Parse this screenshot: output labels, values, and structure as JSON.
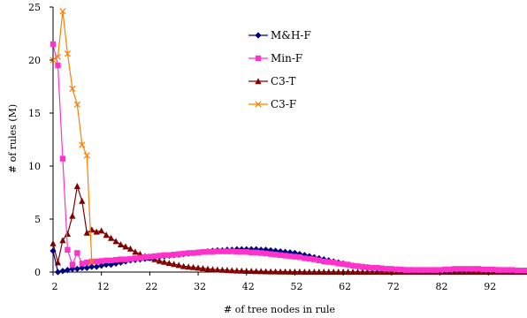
{
  "chart_data": {
    "type": "line",
    "title": "",
    "xlabel": "# of tree nodes in rule",
    "ylabel": "# of rules (M)",
    "xlim": [
      2,
      100
    ],
    "ylim": [
      0,
      25
    ],
    "x_ticks": [
      2,
      12,
      22,
      32,
      42,
      52,
      62,
      72,
      82,
      92
    ],
    "y_ticks": [
      0,
      5,
      10,
      15,
      20,
      25
    ],
    "legend_position": "top-center",
    "grid": false,
    "series": [
      {
        "name": "M&H-F",
        "color": "#00007f",
        "marker": "diamond",
        "x": [
          2,
          3,
          4,
          5,
          6,
          7,
          8,
          9,
          10,
          11,
          12,
          13,
          14,
          15,
          16,
          17,
          18,
          19,
          20,
          21,
          22,
          23,
          24,
          25,
          26,
          27,
          28,
          29,
          30,
          31,
          32,
          33,
          34,
          35,
          36,
          37,
          38,
          39,
          40,
          41,
          42,
          43,
          44,
          45,
          46,
          47,
          48,
          49,
          50,
          51,
          52,
          53,
          54,
          55,
          56,
          57,
          58,
          59,
          60,
          61,
          62,
          63,
          64,
          65,
          66,
          67,
          68,
          69,
          70,
          71,
          72,
          73,
          74,
          75,
          76,
          77,
          78,
          79,
          80,
          81,
          82,
          83,
          84,
          85,
          86,
          87,
          88,
          89,
          90,
          91,
          92,
          93,
          94,
          95,
          96,
          97,
          98,
          99,
          100
        ],
        "values": [
          2.0,
          0.0,
          0.1,
          0.2,
          0.3,
          0.3,
          0.4,
          0.4,
          0.5,
          0.5,
          0.6,
          0.7,
          0.7,
          0.8,
          0.9,
          1.0,
          1.1,
          1.15,
          1.2,
          1.25,
          1.3,
          1.4,
          1.45,
          1.5,
          1.55,
          1.6,
          1.65,
          1.7,
          1.75,
          1.8,
          1.85,
          1.9,
          1.95,
          2.0,
          2.05,
          2.05,
          2.1,
          2.1,
          2.15,
          2.15,
          2.15,
          2.15,
          2.15,
          2.1,
          2.1,
          2.05,
          2.0,
          1.95,
          1.9,
          1.85,
          1.8,
          1.7,
          1.6,
          1.5,
          1.4,
          1.3,
          1.2,
          1.1,
          1.0,
          0.9,
          0.8,
          0.7,
          0.6,
          0.55,
          0.5,
          0.45,
          0.4,
          0.35,
          0.3,
          0.3,
          0.25,
          0.25,
          0.2,
          0.2,
          0.2,
          0.15,
          0.15,
          0.15,
          0.15,
          0.15,
          0.15,
          0.15,
          0.15,
          0.2,
          0.2,
          0.2,
          0.2,
          0.25,
          0.25,
          0.2,
          0.2,
          0.2,
          0.2,
          0.15,
          0.15,
          0.15,
          0.1,
          0.1,
          0.1
        ]
      },
      {
        "name": "Min-F",
        "color": "#ff33cc",
        "marker": "square",
        "x": [
          2,
          3,
          4,
          5,
          6,
          7,
          8,
          9,
          10,
          11,
          12,
          13,
          14,
          15,
          16,
          17,
          18,
          19,
          20,
          21,
          22,
          23,
          24,
          25,
          26,
          27,
          28,
          29,
          30,
          31,
          32,
          33,
          34,
          35,
          36,
          37,
          38,
          39,
          40,
          41,
          42,
          43,
          44,
          45,
          46,
          47,
          48,
          49,
          50,
          51,
          52,
          53,
          54,
          55,
          56,
          57,
          58,
          59,
          60,
          61,
          62,
          63,
          64,
          65,
          66,
          67,
          68,
          69,
          70,
          71,
          72,
          73,
          74,
          75,
          76,
          77,
          78,
          79,
          80,
          81,
          82,
          83,
          84,
          85,
          86,
          87,
          88,
          89,
          90,
          91,
          92,
          93,
          94,
          95,
          96,
          97,
          98,
          99,
          100
        ],
        "values": [
          21.5,
          19.5,
          10.7,
          2.1,
          0.7,
          1.8,
          0.8,
          0.9,
          1.0,
          1.0,
          1.05,
          1.1,
          1.1,
          1.15,
          1.2,
          1.2,
          1.25,
          1.3,
          1.35,
          1.4,
          1.45,
          1.5,
          1.55,
          1.6,
          1.6,
          1.65,
          1.7,
          1.75,
          1.8,
          1.8,
          1.85,
          1.9,
          1.9,
          1.9,
          1.95,
          1.95,
          1.95,
          1.95,
          1.9,
          1.9,
          1.9,
          1.85,
          1.85,
          1.8,
          1.75,
          1.7,
          1.65,
          1.6,
          1.55,
          1.5,
          1.45,
          1.4,
          1.3,
          1.25,
          1.2,
          1.1,
          1.0,
          0.95,
          0.9,
          0.8,
          0.75,
          0.7,
          0.6,
          0.55,
          0.5,
          0.45,
          0.4,
          0.4,
          0.35,
          0.3,
          0.3,
          0.25,
          0.25,
          0.2,
          0.2,
          0.2,
          0.2,
          0.2,
          0.2,
          0.2,
          0.2,
          0.25,
          0.25,
          0.3,
          0.3,
          0.3,
          0.3,
          0.3,
          0.3,
          0.25,
          0.25,
          0.25,
          0.2,
          0.2,
          0.2,
          0.2,
          0.15,
          0.15,
          0.15
        ]
      },
      {
        "name": "C3-T",
        "color": "#800000",
        "marker": "triangle",
        "x": [
          2,
          3,
          4,
          5,
          6,
          7,
          8,
          9,
          10,
          11,
          12,
          13,
          14,
          15,
          16,
          17,
          18,
          19,
          20,
          21,
          22,
          23,
          24,
          25,
          26,
          27,
          28,
          29,
          30,
          31,
          32,
          33,
          34,
          35,
          36,
          37,
          38,
          39,
          40,
          41,
          42,
          43,
          44,
          45,
          46,
          47,
          48,
          49,
          50,
          51,
          52,
          53,
          54,
          55,
          56,
          57,
          58,
          59,
          60,
          61,
          62,
          63,
          64,
          65,
          66,
          67,
          68,
          69,
          70,
          71,
          72,
          73,
          74,
          75,
          76,
          77,
          78,
          79,
          80,
          81,
          82,
          83,
          84,
          85,
          86,
          87,
          88,
          89,
          90,
          91,
          92,
          93,
          94,
          95,
          96,
          97,
          98,
          99,
          100
        ],
        "values": [
          2.7,
          0.9,
          3.0,
          3.6,
          5.3,
          8.1,
          6.7,
          3.7,
          4.0,
          3.8,
          3.9,
          3.5,
          3.2,
          2.9,
          2.6,
          2.4,
          2.2,
          1.9,
          1.7,
          1.5,
          1.35,
          1.2,
          1.05,
          0.95,
          0.85,
          0.75,
          0.65,
          0.55,
          0.5,
          0.45,
          0.4,
          0.35,
          0.3,
          0.25,
          0.22,
          0.2,
          0.18,
          0.15,
          0.13,
          0.12,
          0.1,
          0.09,
          0.08,
          0.07,
          0.06,
          0.05,
          0.05,
          0.04,
          0.04,
          0.03,
          0.03,
          0.03,
          0.02,
          0.02,
          0.02,
          0.02,
          0.02,
          0.02,
          0.02,
          0.02,
          0.02,
          0.02,
          0.02,
          0.02,
          0.02,
          0.02,
          0.02,
          0.02,
          0.02,
          0.02,
          0.02,
          0.02,
          0.02,
          0.02,
          0.02,
          0.02,
          0.02,
          0.02,
          0.02,
          0.02,
          0.02,
          0.02,
          0.02,
          0.02,
          0.02,
          0.02,
          0.02,
          0.02,
          0.02,
          0.02,
          0.02,
          0.02,
          0.02,
          0.02,
          0.02,
          0.02,
          0.02,
          0.02,
          0.02
        ]
      },
      {
        "name": "C3-F",
        "color": "#ff7f00",
        "marker": "x",
        "x": [
          2,
          3,
          4,
          5,
          6,
          7,
          8,
          9,
          10
        ],
        "values": [
          20.0,
          20.3,
          24.6,
          20.6,
          17.3,
          15.8,
          12.0,
          11.0,
          1.0
        ]
      }
    ]
  }
}
